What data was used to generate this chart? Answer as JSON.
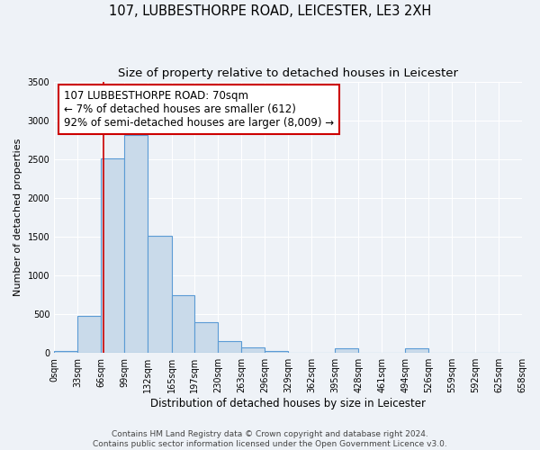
{
  "title": "107, LUBBESTHORPE ROAD, LEICESTER, LE3 2XH",
  "subtitle": "Size of property relative to detached houses in Leicester",
  "xlabel": "Distribution of detached houses by size in Leicester",
  "ylabel": "Number of detached properties",
  "bin_edges": [
    0,
    33,
    66,
    99,
    132,
    165,
    197,
    230,
    263,
    296,
    329,
    362,
    395,
    428,
    461,
    494,
    526,
    559,
    592,
    625,
    658
  ],
  "bar_heights": [
    25,
    480,
    2510,
    2810,
    1510,
    750,
    395,
    150,
    75,
    25,
    0,
    0,
    55,
    0,
    0,
    55,
    0,
    0,
    0,
    0
  ],
  "bar_color": "#c9daea",
  "bar_edge_color": "#5b9bd5",
  "bar_edge_width": 0.8,
  "marker_x": 70,
  "marker_line_color": "#cc0000",
  "annotation_box_color": "#ffffff",
  "annotation_border_color": "#cc0000",
  "annotation_text_line1": "107 LUBBESTHORPE ROAD: 70sqm",
  "annotation_text_line2": "← 7% of detached houses are smaller (612)",
  "annotation_text_line3": "92% of semi-detached houses are larger (8,009) →",
  "xlim_left": 0,
  "xlim_right": 658,
  "ylim_bottom": 0,
  "ylim_top": 3500,
  "yticks": [
    0,
    500,
    1000,
    1500,
    2000,
    2500,
    3000,
    3500
  ],
  "xtick_labels": [
    "0sqm",
    "33sqm",
    "66sqm",
    "99sqm",
    "132sqm",
    "165sqm",
    "197sqm",
    "230sqm",
    "263sqm",
    "296sqm",
    "329sqm",
    "362sqm",
    "395sqm",
    "428sqm",
    "461sqm",
    "494sqm",
    "526sqm",
    "559sqm",
    "592sqm",
    "625sqm",
    "658sqm"
  ],
  "xtick_positions": [
    0,
    33,
    66,
    99,
    132,
    165,
    197,
    230,
    263,
    296,
    329,
    362,
    395,
    428,
    461,
    494,
    526,
    559,
    592,
    625,
    658
  ],
  "footer_line1": "Contains HM Land Registry data © Crown copyright and database right 2024.",
  "footer_line2": "Contains public sector information licensed under the Open Government Licence v3.0.",
  "title_fontsize": 10.5,
  "subtitle_fontsize": 9.5,
  "xlabel_fontsize": 8.5,
  "ylabel_fontsize": 8,
  "tick_fontsize": 7,
  "annotation_fontsize": 8.5,
  "footer_fontsize": 6.5,
  "background_color": "#eef2f7"
}
